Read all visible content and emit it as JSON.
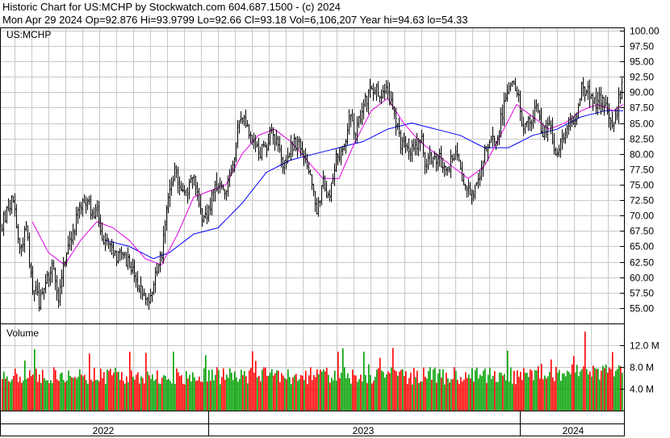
{
  "header": {
    "line1": "Historic Chart for US:MCHP by Stockwatch.com 604.687.1500 - (c) 2024",
    "line2": "Mon Apr 29 2024   Op=92.876  Hi=93.9799   Lo=92.66   Cl=93.18   Vol=6,106,207   Year hi=94.63   lo=54.33"
  },
  "chart_data": {
    "type": "line",
    "title": "Historic Chart for US:MCHP by Stockwatch.com 604.687.1500 - (c) 2024",
    "symbol_label": "US:MCHP",
    "price_axis": {
      "ticks": [
        "100.00",
        "97.50",
        "95.00",
        "92.50",
        "90.00",
        "87.50",
        "85.00",
        "82.50",
        "80.00",
        "77.50",
        "75.00",
        "72.50",
        "70.00",
        "67.50",
        "65.00",
        "62.50",
        "60.00",
        "57.50",
        "55.00"
      ],
      "min": 52.5,
      "max": 100.5
    },
    "volume_panel": {
      "label": "Volume",
      "ticks": [
        "12.0 M",
        "8.0 M",
        "4.0 M"
      ],
      "max": 16,
      "colors": {
        "up": "#00a000",
        "down": "#ff0000"
      }
    },
    "x_labels": [
      "2022",
      "2023",
      "2024"
    ],
    "colors": {
      "price_bars": "#000000",
      "ma_short": "#e000e0",
      "ma_long": "#0000ff",
      "grid": "#c8c8c8"
    },
    "price_anchors": [
      [
        0,
        68
      ],
      [
        8,
        71
      ],
      [
        16,
        73
      ],
      [
        24,
        64
      ],
      [
        32,
        68
      ],
      [
        40,
        58
      ],
      [
        48,
        56
      ],
      [
        56,
        59
      ],
      [
        64,
        62
      ],
      [
        72,
        57
      ],
      [
        80,
        63
      ],
      [
        88,
        66
      ],
      [
        96,
        71
      ],
      [
        104,
        72
      ],
      [
        112,
        71
      ],
      [
        120,
        70
      ],
      [
        128,
        65
      ],
      [
        136,
        66
      ],
      [
        144,
        63
      ],
      [
        152,
        64
      ],
      [
        160,
        62
      ],
      [
        168,
        60
      ],
      [
        176,
        58
      ],
      [
        184,
        57
      ],
      [
        192,
        60
      ],
      [
        200,
        64
      ],
      [
        208,
        74
      ],
      [
        216,
        77
      ],
      [
        224,
        75
      ],
      [
        232,
        74
      ],
      [
        240,
        76
      ],
      [
        248,
        70
      ],
      [
        256,
        70
      ],
      [
        264,
        74
      ],
      [
        272,
        75
      ],
      [
        280,
        74
      ],
      [
        288,
        78
      ],
      [
        296,
        86
      ],
      [
        304,
        85
      ],
      [
        312,
        82
      ],
      [
        320,
        80
      ],
      [
        328,
        81
      ],
      [
        336,
        84
      ],
      [
        344,
        81
      ],
      [
        352,
        78
      ],
      [
        360,
        81
      ],
      [
        368,
        82
      ],
      [
        376,
        80
      ],
      [
        384,
        76
      ],
      [
        392,
        71
      ],
      [
        400,
        75
      ],
      [
        408,
        73
      ],
      [
        416,
        79
      ],
      [
        424,
        80
      ],
      [
        432,
        86
      ],
      [
        440,
        84
      ],
      [
        448,
        87
      ],
      [
        456,
        90
      ],
      [
        464,
        91
      ],
      [
        472,
        89
      ],
      [
        480,
        90
      ],
      [
        488,
        86
      ],
      [
        496,
        82
      ],
      [
        504,
        81
      ],
      [
        512,
        80
      ],
      [
        520,
        83
      ],
      [
        528,
        78
      ],
      [
        536,
        80
      ],
      [
        544,
        79
      ],
      [
        552,
        77
      ],
      [
        560,
        80
      ],
      [
        568,
        79
      ],
      [
        576,
        74
      ],
      [
        584,
        73
      ],
      [
        592,
        75
      ],
      [
        600,
        80
      ],
      [
        608,
        82
      ],
      [
        616,
        83
      ],
      [
        624,
        88
      ],
      [
        632,
        92
      ],
      [
        640,
        90
      ],
      [
        648,
        84
      ],
      [
        656,
        85
      ],
      [
        664,
        87
      ],
      [
        672,
        83
      ],
      [
        680,
        85
      ],
      [
        688,
        80
      ],
      [
        696,
        82
      ],
      [
        704,
        85
      ],
      [
        712,
        85
      ],
      [
        720,
        91
      ],
      [
        728,
        90
      ],
      [
        736,
        88
      ],
      [
        744,
        89
      ],
      [
        752,
        87
      ],
      [
        760,
        84
      ],
      [
        768,
        90
      ],
      [
        772,
        93.2
      ]
    ],
    "ma_short_anchors": [
      [
        40,
        69
      ],
      [
        60,
        64
      ],
      [
        80,
        62
      ],
      [
        100,
        66
      ],
      [
        120,
        69
      ],
      [
        140,
        68
      ],
      [
        160,
        66
      ],
      [
        180,
        63
      ],
      [
        200,
        62
      ],
      [
        220,
        67
      ],
      [
        240,
        73
      ],
      [
        260,
        74
      ],
      [
        280,
        75
      ],
      [
        300,
        80
      ],
      [
        320,
        83
      ],
      [
        340,
        84
      ],
      [
        360,
        82
      ],
      [
        380,
        79
      ],
      [
        400,
        76
      ],
      [
        420,
        76
      ],
      [
        440,
        82
      ],
      [
        460,
        87
      ],
      [
        480,
        89
      ],
      [
        500,
        85
      ],
      [
        520,
        82
      ],
      [
        540,
        80
      ],
      [
        560,
        78
      ],
      [
        580,
        76
      ],
      [
        600,
        78
      ],
      [
        620,
        83
      ],
      [
        640,
        88
      ],
      [
        660,
        86
      ],
      [
        680,
        84
      ],
      [
        700,
        85
      ],
      [
        720,
        87
      ],
      [
        740,
        88
      ],
      [
        760,
        87
      ],
      [
        772,
        88
      ]
    ],
    "ma_long_anchors": [
      [
        130,
        66
      ],
      [
        160,
        65
      ],
      [
        190,
        63
      ],
      [
        210,
        64
      ],
      [
        240,
        67
      ],
      [
        270,
        68
      ],
      [
        300,
        72
      ],
      [
        330,
        77
      ],
      [
        360,
        79
      ],
      [
        390,
        80
      ],
      [
        420,
        81
      ],
      [
        450,
        82
      ],
      [
        480,
        84
      ],
      [
        510,
        85
      ],
      [
        540,
        84
      ],
      [
        570,
        83
      ],
      [
        600,
        81
      ],
      [
        630,
        81
      ],
      [
        660,
        83
      ],
      [
        690,
        84
      ],
      [
        720,
        86
      ],
      [
        750,
        87
      ],
      [
        772,
        87
      ]
    ]
  }
}
